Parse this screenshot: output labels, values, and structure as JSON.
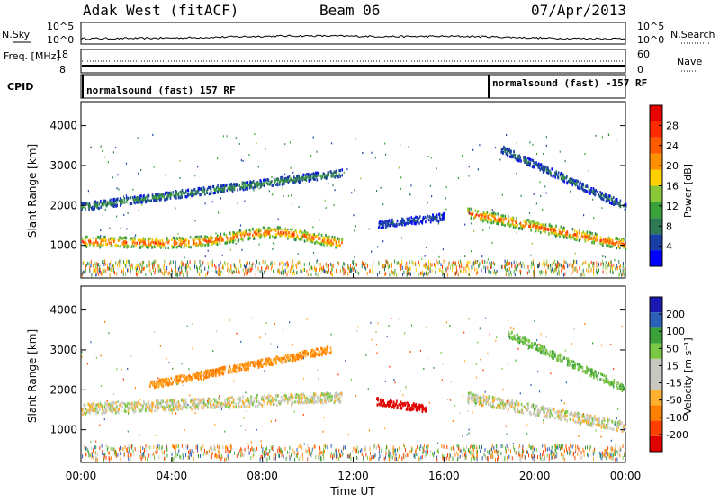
{
  "header": {
    "radar": "Adak West (fitACF)",
    "beam": "Beam 06",
    "date": "07/Apr/2013"
  },
  "colors": {
    "power": [
      "#0000ff",
      "#1a3ea8",
      "#2e7a55",
      "#3aa03a",
      "#8ac83a",
      "#ffd000",
      "#ff9000",
      "#ff5a00",
      "#ff2a00",
      "#e80000"
    ],
    "velocity": [
      "#e00000",
      "#ff4000",
      "#ff8000",
      "#ffb030",
      "#c8c8c0",
      "#c8c8c0",
      "#7bc845",
      "#3aa03a",
      "#2c5fb8",
      "#1a1ab0"
    ],
    "noise_dot": "#000000"
  },
  "chart_data": [
    {
      "type": "line",
      "title": "",
      "panel": "N.Sky / N.Search",
      "ylabel": "N.Sky",
      "right_label": "N.Search",
      "yticks_left": [
        "10^5",
        "10^0"
      ],
      "yticks_right": [
        "10^5",
        "10^0"
      ],
      "grid": false
    },
    {
      "type": "line",
      "panel": "Freq / Nave",
      "ylabel": "Freq. [MHz]",
      "right_label": "Nave",
      "yticks_left": [
        "18",
        "8"
      ],
      "yticks_right": [
        "60",
        "0"
      ],
      "grid": false
    },
    {
      "type": "table",
      "panel": "CPID",
      "ylabel": "CPID",
      "segments": [
        {
          "start": "00:00",
          "label": "normalsound (fast) 157 RF"
        },
        {
          "start": "18:00",
          "label": "normalsound (fast) -157 RF"
        }
      ]
    },
    {
      "type": "heatmap",
      "panel": "power",
      "xlabel": "",
      "ylabel": "Slant Range [km]",
      "colorbar_label": "Power [dB]",
      "colorbar_ticks": [
        4,
        8,
        12,
        16,
        20,
        24,
        28
      ],
      "xlim": [
        "00:00",
        "24:00"
      ],
      "ylim": [
        180,
        4600
      ],
      "yticks": [
        1000,
        2000,
        3000,
        4000
      ],
      "features": [
        {
          "kind": "lower band",
          "t_start": 0,
          "t_end": 11.5,
          "range_start": 1080,
          "range_end": 960,
          "peak_hour": 8.5,
          "peak_range": 1400,
          "power_db": 26
        },
        {
          "kind": "upper band",
          "t_start": 0,
          "t_end": 11.5,
          "range_start": 1950,
          "range_end": 2800,
          "power_db": 10
        },
        {
          "kind": "isolated patch",
          "t_start": 13,
          "t_end": 16,
          "range_start": 1500,
          "range_end": 1700,
          "power_db": 6
        },
        {
          "kind": "lower band",
          "t_start": 17,
          "t_end": 24,
          "range_start": 1800,
          "range_end": 1000,
          "power_db": 26
        },
        {
          "kind": "upper band",
          "t_start": 18.5,
          "t_end": 24,
          "range_start": 3400,
          "range_end": 1950,
          "power_db": 8
        }
      ]
    },
    {
      "type": "heatmap",
      "panel": "velocity",
      "xlabel": "Time UT",
      "ylabel": "Slant Range [km]",
      "colorbar_label": "Velocity [m s⁻¹]",
      "colorbar_ticks": [
        200,
        100,
        50,
        15,
        -15,
        -50,
        -100,
        -200
      ],
      "xlim": [
        "00:00",
        "24:00"
      ],
      "ylim": [
        180,
        4600
      ],
      "yticks": [
        1000,
        2000,
        3000,
        4000
      ],
      "xticks": [
        "00:00",
        "04:00",
        "08:00",
        "12:00",
        "16:00",
        "20:00",
        "00:00"
      ],
      "features": [
        {
          "kind": "ground scatter",
          "t_start": 0,
          "t_end": 11.5,
          "range_start": 1500,
          "range_end": 1800,
          "velocity": 0
        },
        {
          "kind": "ionospheric",
          "t_start": 3,
          "t_end": 11,
          "range_start": 2100,
          "range_end": 3000,
          "velocity": -60
        },
        {
          "kind": "patch",
          "t_start": 13,
          "t_end": 15.2,
          "range_start": 1700,
          "range_end": 1500,
          "velocity": -200
        },
        {
          "kind": "ground scatter",
          "t_start": 17,
          "t_end": 24,
          "range_start": 1800,
          "range_end": 1050,
          "velocity": 0
        },
        {
          "kind": "ionospheric",
          "t_start": 18.8,
          "t_end": 24,
          "range_start": 3400,
          "range_end": 2000,
          "velocity": 40
        }
      ]
    }
  ]
}
